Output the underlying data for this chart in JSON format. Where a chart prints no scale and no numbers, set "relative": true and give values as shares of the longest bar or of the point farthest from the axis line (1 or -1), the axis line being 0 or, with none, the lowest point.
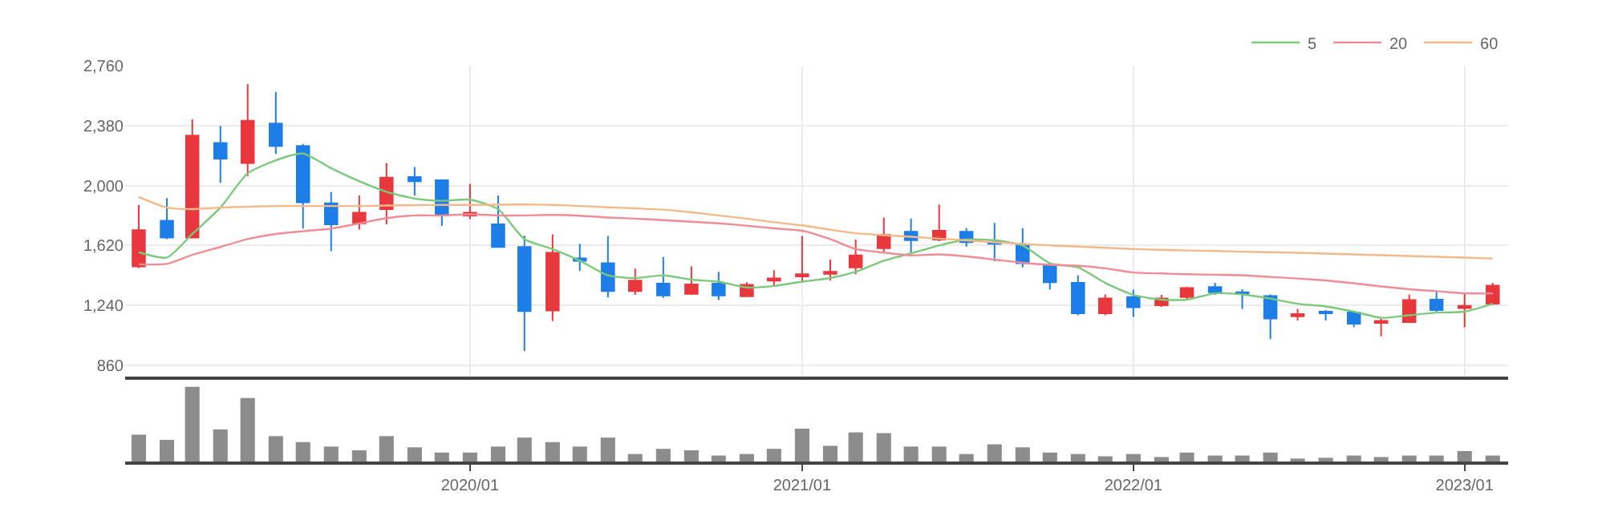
{
  "chart_data": [
    {
      "type": "candlestick",
      "x": [
        "2019-01",
        "2019-02",
        "2019-03",
        "2019-04",
        "2019-05",
        "2019-06",
        "2019-07",
        "2019-08",
        "2019-09",
        "2019-10",
        "2019-11",
        "2019-12",
        "2020-01",
        "2020-02",
        "2020-03",
        "2020-04",
        "2020-05",
        "2020-06",
        "2020-07",
        "2020-08",
        "2020-09",
        "2020-10",
        "2020-11",
        "2020-12",
        "2021-01",
        "2021-02",
        "2021-03",
        "2021-04",
        "2021-05",
        "2021-06",
        "2021-07",
        "2021-08",
        "2021-09",
        "2021-10",
        "2021-11",
        "2021-12",
        "2022-01",
        "2022-02",
        "2022-03",
        "2022-04",
        "2022-05",
        "2022-06",
        "2022-07",
        "2022-08",
        "2022-09",
        "2022-10",
        "2022-11",
        "2022-12",
        "2023-01",
        "2023-02"
      ],
      "ohlc": [
        [
          1487,
          1877,
          1477,
          1717
        ],
        [
          1777,
          1920,
          1660,
          1670
        ],
        [
          1670,
          2420,
          1670,
          2317
        ],
        [
          2270,
          2377,
          2017,
          2170
        ],
        [
          2143,
          2643,
          2060,
          2410
        ],
        [
          2393,
          2593,
          2200,
          2250
        ],
        [
          2250,
          2263,
          1727,
          1893
        ],
        [
          1887,
          1960,
          1583,
          1753
        ],
        [
          1760,
          1937,
          1720,
          1827
        ],
        [
          1850,
          2143,
          1753,
          2050
        ],
        [
          2053,
          2117,
          1937,
          2027
        ],
        [
          2033,
          2040,
          1743,
          1810
        ],
        [
          1810,
          2010,
          1787,
          1827
        ],
        [
          1753,
          1937,
          1607,
          1610
        ],
        [
          1610,
          1683,
          950,
          1203
        ],
        [
          1207,
          1690,
          1140,
          1573
        ],
        [
          1537,
          1630,
          1457,
          1523
        ],
        [
          1507,
          1680,
          1290,
          1330
        ],
        [
          1330,
          1473,
          1307,
          1397
        ],
        [
          1377,
          1547,
          1287,
          1303
        ],
        [
          1313,
          1487,
          1307,
          1373
        ],
        [
          1377,
          1453,
          1273,
          1303
        ],
        [
          1297,
          1387,
          1293,
          1370
        ],
        [
          1397,
          1463,
          1357,
          1410
        ],
        [
          1423,
          1680,
          1387,
          1437
        ],
        [
          1440,
          1530,
          1397,
          1453
        ],
        [
          1480,
          1657,
          1437,
          1557
        ],
        [
          1603,
          1797,
          1570,
          1687
        ],
        [
          1707,
          1790,
          1570,
          1653
        ],
        [
          1657,
          1880,
          1647,
          1713
        ],
        [
          1707,
          1730,
          1613,
          1640
        ],
        [
          1643,
          1763,
          1520,
          1630
        ],
        [
          1620,
          1730,
          1480,
          1507
        ],
        [
          1497,
          1503,
          1340,
          1387
        ],
        [
          1382,
          1431,
          1177,
          1190
        ],
        [
          1190,
          1309,
          1177,
          1283
        ],
        [
          1293,
          1339,
          1167,
          1227
        ],
        [
          1240,
          1306,
          1230,
          1283
        ],
        [
          1293,
          1359,
          1273,
          1349
        ],
        [
          1356,
          1382,
          1306,
          1323
        ],
        [
          1323,
          1342,
          1217,
          1313
        ],
        [
          1299,
          1309,
          1025,
          1157
        ],
        [
          1171,
          1217,
          1144,
          1184
        ],
        [
          1200,
          1210,
          1144,
          1190
        ],
        [
          1194,
          1200,
          1101,
          1124
        ],
        [
          1128,
          1157,
          1045,
          1141
        ],
        [
          1134,
          1309,
          1128,
          1273
        ],
        [
          1276,
          1332,
          1200,
          1210
        ],
        [
          1223,
          1316,
          1101,
          1237
        ],
        [
          1250,
          1382,
          1243,
          1365
        ]
      ],
      "colors": [
        "#e8383d",
        "#1e7ee8",
        "#e8383d",
        "#1e7ee8",
        "#e8383d",
        "#1e7ee8",
        "#1e7ee8",
        "#1e7ee8",
        "#e8383d",
        "#e8383d",
        "#1e7ee8",
        "#1e7ee8",
        "#e8383d",
        "#1e7ee8",
        "#1e7ee8",
        "#e8383d",
        "#1e7ee8",
        "#1e7ee8",
        "#e8383d",
        "#1e7ee8",
        "#e8383d",
        "#1e7ee8",
        "#e8383d",
        "#e8383d",
        "#e8383d",
        "#e8383d",
        "#e8383d",
        "#e8383d",
        "#1e7ee8",
        "#e8383d",
        "#1e7ee8",
        "#1e7ee8",
        "#1e7ee8",
        "#1e7ee8",
        "#1e7ee8",
        "#e8383d",
        "#1e7ee8",
        "#e8383d",
        "#e8383d",
        "#1e7ee8",
        "#1e7ee8",
        "#1e7ee8",
        "#e8383d",
        "#1e7ee8",
        "#1e7ee8",
        "#e8383d",
        "#e8383d",
        "#1e7ee8",
        "#e8383d",
        "#e8383d"
      ],
      "series": [
        {
          "name": "5",
          "type": "line",
          "color": "#7cc97c",
          "values": [
            1577,
            1543,
            1693,
            1860,
            2077,
            2160,
            2203,
            2110,
            2027,
            1960,
            1917,
            1903,
            1910,
            1850,
            1660,
            1597,
            1523,
            1430,
            1413,
            1430,
            1403,
            1390,
            1353,
            1363,
            1390,
            1413,
            1453,
            1523,
            1570,
            1620,
            1657,
            1653,
            1620,
            1507,
            1481,
            1382,
            1306,
            1276,
            1276,
            1316,
            1309,
            1283,
            1250,
            1233,
            1200,
            1161,
            1177,
            1194,
            1200,
            1250
          ]
        },
        {
          "name": "20",
          "type": "line",
          "color": "#f08c96",
          "values": [
            1500,
            1503,
            1560,
            1610,
            1660,
            1693,
            1710,
            1727,
            1760,
            1793,
            1810,
            1810,
            1817,
            1810,
            1810,
            1813,
            1808,
            1797,
            1790,
            1780,
            1770,
            1760,
            1745,
            1728,
            1713,
            1660,
            1597,
            1575,
            1557,
            1563,
            1550,
            1530,
            1510,
            1497,
            1491,
            1475,
            1448,
            1442,
            1437,
            1434,
            1431,
            1420,
            1410,
            1398,
            1380,
            1360,
            1342,
            1330,
            1316,
            1316
          ]
        },
        {
          "name": "60",
          "type": "line",
          "color": "#f4b98a",
          "values": [
            1927,
            1860,
            1850,
            1860,
            1865,
            1870,
            1870,
            1870,
            1870,
            1873,
            1875,
            1877,
            1877,
            1878,
            1880,
            1877,
            1870,
            1862,
            1855,
            1847,
            1830,
            1810,
            1790,
            1767,
            1747,
            1720,
            1697,
            1685,
            1675,
            1663,
            1652,
            1640,
            1630,
            1620,
            1613,
            1605,
            1597,
            1592,
            1588,
            1585,
            1580,
            1577,
            1573,
            1568,
            1563,
            1558,
            1553,
            1548,
            1543,
            1537
          ]
        }
      ],
      "xlim": [
        "2018-12-17",
        "2023-02-18"
      ],
      "xticks": [
        {
          "value": "2020-01",
          "label": null
        },
        {
          "value": "2021-01",
          "label": null
        },
        {
          "value": "2022-01",
          "label": null
        },
        {
          "value": "2023-01",
          "label": null
        }
      ],
      "ylim": [
        790,
        2760
      ],
      "yticks": [
        {
          "value": 860,
          "label": "860"
        },
        {
          "value": 1240,
          "label": "1,240"
        },
        {
          "value": 1620,
          "label": "1,620"
        },
        {
          "value": 2000,
          "label": "2,000"
        },
        {
          "value": 2380,
          "label": "2,380"
        },
        {
          "value": 2760,
          "label": "2,760"
        }
      ],
      "tick_labels": "y",
      "grid": true,
      "legend": "top right"
    },
    {
      "type": "bar",
      "relative": true,
      "color": "#8c8c8c",
      "x": [
        "2019-01",
        "2019-02",
        "2019-03",
        "2019-04",
        "2019-05",
        "2019-06",
        "2019-07",
        "2019-08",
        "2019-09",
        "2019-10",
        "2019-11",
        "2019-12",
        "2020-01",
        "2020-02",
        "2020-03",
        "2020-04",
        "2020-05",
        "2020-06",
        "2020-07",
        "2020-08",
        "2020-09",
        "2020-10",
        "2020-11",
        "2020-12",
        "2021-01",
        "2021-02",
        "2021-03",
        "2021-04",
        "2021-05",
        "2021-06",
        "2021-07",
        "2021-08",
        "2021-09",
        "2021-10",
        "2021-11",
        "2021-12",
        "2022-01",
        "2022-02",
        "2022-03",
        "2022-04",
        "2022-05",
        "2022-06",
        "2022-07",
        "2022-08",
        "2022-09",
        "2022-10",
        "2022-11",
        "2022-12",
        "2023-01",
        "2023-02"
      ],
      "values": [
        0.36,
        0.29,
        1,
        0.43,
        0.85,
        0.34,
        0.26,
        0.2,
        0.15,
        0.34,
        0.19,
        0.12,
        0.12,
        0.2,
        0.32,
        0.26,
        0.2,
        0.32,
        0.1,
        0.17,
        0.15,
        0.08,
        0.1,
        0.17,
        0.44,
        0.21,
        0.39,
        0.38,
        0.2,
        0.2,
        0.1,
        0.23,
        0.19,
        0.12,
        0.1,
        0.07,
        0.1,
        0.06,
        0.12,
        0.08,
        0.08,
        0.12,
        0.04,
        0.05,
        0.08,
        0.06,
        0.08,
        0.08,
        0.14,
        0.08
      ],
      "xlim": [
        "2018-12-17",
        "2023-02-18"
      ],
      "xticks": [
        {
          "value": "2020-01",
          "label": "2020/01"
        },
        {
          "value": "2021-01",
          "label": "2021/01"
        },
        {
          "value": "2022-01",
          "label": "2022/01"
        },
        {
          "value": "2023-01",
          "label": "2023/01"
        }
      ],
      "tick_labels": "x"
    }
  ]
}
